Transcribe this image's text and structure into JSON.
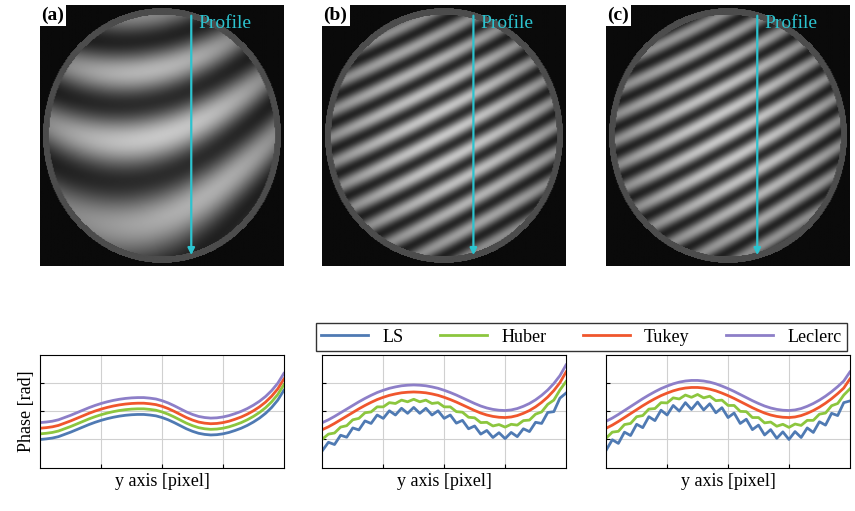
{
  "images": [
    {
      "label": "(a)",
      "annotation": "Profile"
    },
    {
      "label": "(b)",
      "annotation": "Profile"
    },
    {
      "label": "(c)",
      "annotation": "Profile"
    }
  ],
  "chart_data": [
    {
      "type": "line",
      "x_label": "y axis [pixel]",
      "y_label": "Phase [rad]",
      "grid": true,
      "tick_labels": false,
      "xlim": [
        0,
        400
      ],
      "xticks": [
        100,
        200,
        300
      ],
      "ylim": [
        0,
        4
      ],
      "yticks": [
        1,
        2,
        3
      ],
      "x": [
        0,
        10,
        20,
        30,
        40,
        50,
        60,
        70,
        80,
        90,
        100,
        110,
        120,
        130,
        140,
        150,
        160,
        170,
        180,
        190,
        200,
        210,
        220,
        230,
        240,
        250,
        260,
        270,
        280,
        290,
        300,
        310,
        320,
        330,
        340,
        350,
        360,
        370,
        380,
        390,
        400
      ],
      "series": [
        {
          "name": "LS",
          "color": "#4f7ab3",
          "values": [
            1.0,
            1.02,
            1.05,
            1.1,
            1.18,
            1.26,
            1.35,
            1.44,
            1.53,
            1.61,
            1.68,
            1.74,
            1.79,
            1.83,
            1.86,
            1.88,
            1.89,
            1.89,
            1.87,
            1.84,
            1.78,
            1.7,
            1.6,
            1.49,
            1.38,
            1.29,
            1.22,
            1.18,
            1.16,
            1.17,
            1.2,
            1.25,
            1.32,
            1.4,
            1.5,
            1.62,
            1.76,
            1.93,
            2.14,
            2.4,
            2.75
          ]
        },
        {
          "name": "Huber",
          "color": "#8cc63e",
          "values": [
            1.2,
            1.22,
            1.25,
            1.3,
            1.38,
            1.46,
            1.55,
            1.64,
            1.73,
            1.81,
            1.88,
            1.94,
            1.99,
            2.03,
            2.06,
            2.08,
            2.09,
            2.09,
            2.07,
            2.04,
            1.98,
            1.9,
            1.8,
            1.69,
            1.58,
            1.49,
            1.42,
            1.38,
            1.36,
            1.37,
            1.4,
            1.45,
            1.52,
            1.6,
            1.7,
            1.82,
            1.96,
            2.13,
            2.34,
            2.6,
            2.95
          ]
        },
        {
          "name": "Tukey",
          "color": "#f0562d",
          "values": [
            1.4,
            1.42,
            1.45,
            1.5,
            1.58,
            1.66,
            1.75,
            1.84,
            1.93,
            2.01,
            2.08,
            2.14,
            2.19,
            2.23,
            2.26,
            2.28,
            2.29,
            2.29,
            2.27,
            2.24,
            2.18,
            2.1,
            2.0,
            1.89,
            1.78,
            1.69,
            1.62,
            1.58,
            1.56,
            1.57,
            1.6,
            1.65,
            1.72,
            1.8,
            1.9,
            2.02,
            2.16,
            2.33,
            2.54,
            2.8,
            3.15
          ]
        },
        {
          "name": "Leclerc",
          "color": "#8d7fc8",
          "values": [
            1.6,
            1.62,
            1.65,
            1.7,
            1.78,
            1.86,
            1.95,
            2.04,
            2.13,
            2.21,
            2.28,
            2.34,
            2.39,
            2.43,
            2.46,
            2.48,
            2.49,
            2.49,
            2.47,
            2.44,
            2.38,
            2.3,
            2.2,
            2.09,
            1.98,
            1.89,
            1.82,
            1.78,
            1.76,
            1.77,
            1.8,
            1.85,
            1.92,
            2.0,
            2.1,
            2.22,
            2.36,
            2.53,
            2.74,
            3.0,
            3.35
          ]
        }
      ]
    },
    {
      "type": "line",
      "x_label": "y axis [pixel]",
      "grid": true,
      "tick_labels": false,
      "legend": "upper center",
      "xlim": [
        0,
        400
      ],
      "xticks": [
        100,
        200,
        300
      ],
      "ylim": [
        0,
        4
      ],
      "yticks": [
        1,
        2,
        3
      ],
      "x": [
        0,
        10,
        20,
        30,
        40,
        50,
        60,
        70,
        80,
        90,
        100,
        110,
        120,
        130,
        140,
        150,
        160,
        170,
        180,
        190,
        200,
        210,
        220,
        230,
        240,
        250,
        260,
        270,
        280,
        290,
        300,
        310,
        320,
        330,
        340,
        350,
        360,
        370,
        380,
        390,
        400
      ],
      "series": [
        {
          "name": "LS",
          "color": "#4f7ab3",
          "values": [
            0.6,
            0.9,
            0.82,
            1.15,
            1.08,
            1.41,
            1.34,
            1.66,
            1.57,
            1.87,
            1.75,
            2.02,
            1.87,
            2.11,
            1.93,
            2.14,
            1.93,
            2.11,
            1.87,
            2.02,
            1.75,
            1.87,
            1.58,
            1.68,
            1.38,
            1.48,
            1.19,
            1.32,
            1.07,
            1.24,
            1.03,
            1.25,
            1.1,
            1.38,
            1.28,
            1.61,
            1.57,
            1.96,
            1.99,
            2.47,
            2.65
          ]
        },
        {
          "name": "Huber",
          "color": "#8cc63e",
          "values": [
            1.01,
            1.19,
            1.23,
            1.44,
            1.49,
            1.7,
            1.75,
            1.95,
            1.98,
            2.16,
            2.16,
            2.31,
            2.28,
            2.4,
            2.34,
            2.43,
            2.34,
            2.4,
            2.28,
            2.31,
            2.16,
            2.16,
            1.99,
            1.97,
            1.79,
            1.77,
            1.6,
            1.61,
            1.48,
            1.53,
            1.44,
            1.54,
            1.51,
            1.67,
            1.69,
            1.9,
            1.98,
            2.25,
            2.4,
            2.76,
            3.06
          ]
        },
        {
          "name": "Tukey",
          "color": "#f0562d",
          "values": [
            1.35,
            1.45,
            1.57,
            1.7,
            1.83,
            1.96,
            2.09,
            2.21,
            2.32,
            2.42,
            2.5,
            2.57,
            2.62,
            2.66,
            2.68,
            2.69,
            2.68,
            2.66,
            2.62,
            2.57,
            2.5,
            2.42,
            2.33,
            2.23,
            2.13,
            2.03,
            1.94,
            1.87,
            1.82,
            1.79,
            1.78,
            1.8,
            1.85,
            1.93,
            2.03,
            2.16,
            2.32,
            2.51,
            2.74,
            3.02,
            3.4
          ]
        },
        {
          "name": "Leclerc",
          "color": "#8d7fc8",
          "values": [
            1.6,
            1.7,
            1.82,
            1.95,
            2.08,
            2.21,
            2.34,
            2.46,
            2.57,
            2.67,
            2.75,
            2.82,
            2.87,
            2.91,
            2.93,
            2.94,
            2.93,
            2.91,
            2.87,
            2.82,
            2.75,
            2.67,
            2.58,
            2.48,
            2.38,
            2.28,
            2.19,
            2.12,
            2.07,
            2.04,
            2.03,
            2.05,
            2.1,
            2.18,
            2.28,
            2.41,
            2.57,
            2.76,
            2.99,
            3.27,
            3.65
          ]
        }
      ]
    },
    {
      "type": "line",
      "x_label": "y axis [pixel]",
      "grid": true,
      "tick_labels": false,
      "xlim": [
        0,
        400
      ],
      "xticks": [
        100,
        200,
        300
      ],
      "ylim": [
        0,
        4
      ],
      "yticks": [
        1,
        2,
        3
      ],
      "x": [
        0,
        10,
        20,
        30,
        40,
        50,
        60,
        70,
        80,
        90,
        100,
        110,
        120,
        130,
        140,
        150,
        160,
        170,
        180,
        190,
        200,
        210,
        220,
        230,
        240,
        250,
        260,
        270,
        280,
        290,
        300,
        310,
        320,
        330,
        340,
        350,
        360,
        370,
        380,
        390,
        400
      ],
      "series": [
        {
          "name": "LS",
          "color": "#4f7ab3",
          "values": [
            0.62,
            0.99,
            0.86,
            1.26,
            1.14,
            1.54,
            1.42,
            1.81,
            1.67,
            2.04,
            1.87,
            2.21,
            2.01,
            2.31,
            2.07,
            2.33,
            2.05,
            2.27,
            1.95,
            2.13,
            1.78,
            1.94,
            1.57,
            1.72,
            1.35,
            1.51,
            1.16,
            1.35,
            1.04,
            1.27,
            1.0,
            1.28,
            1.07,
            1.41,
            1.25,
            1.63,
            1.51,
            1.93,
            1.85,
            2.31,
            2.37
          ]
        },
        {
          "name": "Huber",
          "color": "#8cc63e",
          "values": [
            1.05,
            1.26,
            1.29,
            1.53,
            1.57,
            1.81,
            1.85,
            2.08,
            2.1,
            2.31,
            2.3,
            2.48,
            2.44,
            2.58,
            2.5,
            2.6,
            2.48,
            2.54,
            2.38,
            2.4,
            2.21,
            2.21,
            2.0,
            1.99,
            1.78,
            1.78,
            1.59,
            1.62,
            1.47,
            1.54,
            1.43,
            1.55,
            1.5,
            1.68,
            1.68,
            1.9,
            1.94,
            2.2,
            2.28,
            2.58,
            2.8
          ]
        },
        {
          "name": "Tukey",
          "color": "#f0562d",
          "values": [
            1.4,
            1.51,
            1.64,
            1.78,
            1.92,
            2.06,
            2.2,
            2.33,
            2.45,
            2.56,
            2.65,
            2.73,
            2.79,
            2.83,
            2.85,
            2.85,
            2.83,
            2.79,
            2.73,
            2.65,
            2.56,
            2.46,
            2.35,
            2.24,
            2.13,
            2.03,
            1.94,
            1.87,
            1.82,
            1.79,
            1.78,
            1.8,
            1.85,
            1.93,
            2.03,
            2.15,
            2.29,
            2.45,
            2.63,
            2.83,
            3.15
          ]
        },
        {
          "name": "Leclerc",
          "color": "#8d7fc8",
          "values": [
            1.65,
            1.76,
            1.89,
            2.03,
            2.17,
            2.31,
            2.45,
            2.58,
            2.7,
            2.81,
            2.9,
            2.98,
            3.04,
            3.08,
            3.1,
            3.1,
            3.08,
            3.04,
            2.98,
            2.9,
            2.81,
            2.71,
            2.6,
            2.49,
            2.38,
            2.28,
            2.19,
            2.12,
            2.07,
            2.04,
            2.03,
            2.05,
            2.1,
            2.18,
            2.28,
            2.4,
            2.54,
            2.7,
            2.88,
            3.08,
            3.4
          ]
        }
      ]
    }
  ]
}
